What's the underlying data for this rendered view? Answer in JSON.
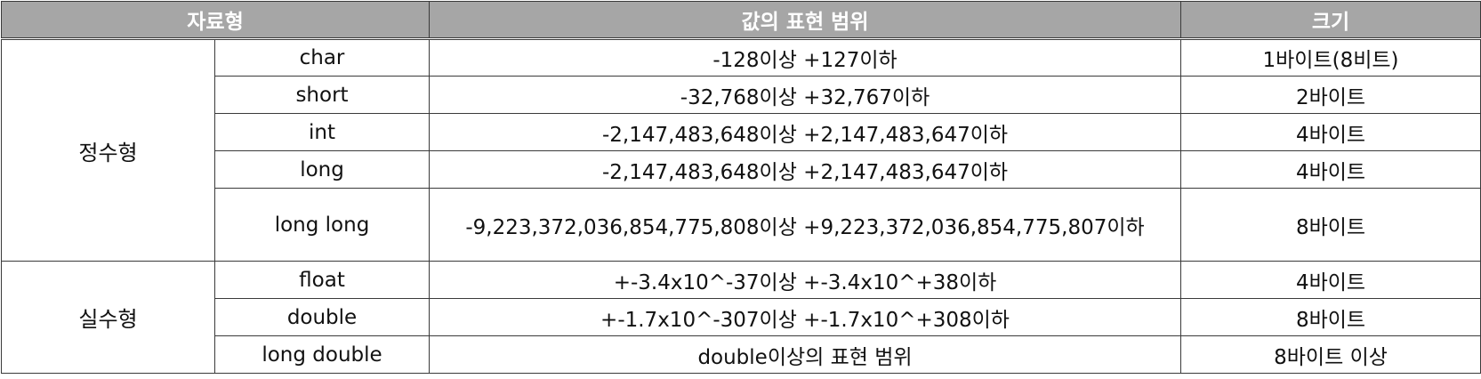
{
  "table": {
    "headers": {
      "type": "자료형",
      "range": "값의 표현 범위",
      "size": "크기"
    },
    "groups": [
      {
        "label": "정수형",
        "rows": [
          {
            "name": "char",
            "range": "-128이상 +127이하",
            "size": "1바이트(8비트)"
          },
          {
            "name": "short",
            "range": "-32,768이상 +32,767이하",
            "size": "2바이트"
          },
          {
            "name": "int",
            "range": "-2,147,483,648이상 +2,147,483,647이하",
            "size": "4바이트"
          },
          {
            "name": "long",
            "range": "-2,147,483,648이상 +2,147,483,647이하",
            "size": "4바이트"
          },
          {
            "name": "long long",
            "range": "-9,223,372,036,854,775,808이상 +9,223,372,036,854,775,807이하",
            "size": "8바이트"
          }
        ]
      },
      {
        "label": "실수형",
        "rows": [
          {
            "name": "float",
            "range": "+-3.4x10^-37이상 +-3.4x10^+38이하",
            "size": "4바이트"
          },
          {
            "name": "double",
            "range": "+-1.7x10^-307이상 +-1.7x10^+308이하",
            "size": "8바이트"
          },
          {
            "name": "long double",
            "range": "double이상의 표현 범위",
            "size": "8바이트 이상"
          }
        ]
      }
    ]
  }
}
